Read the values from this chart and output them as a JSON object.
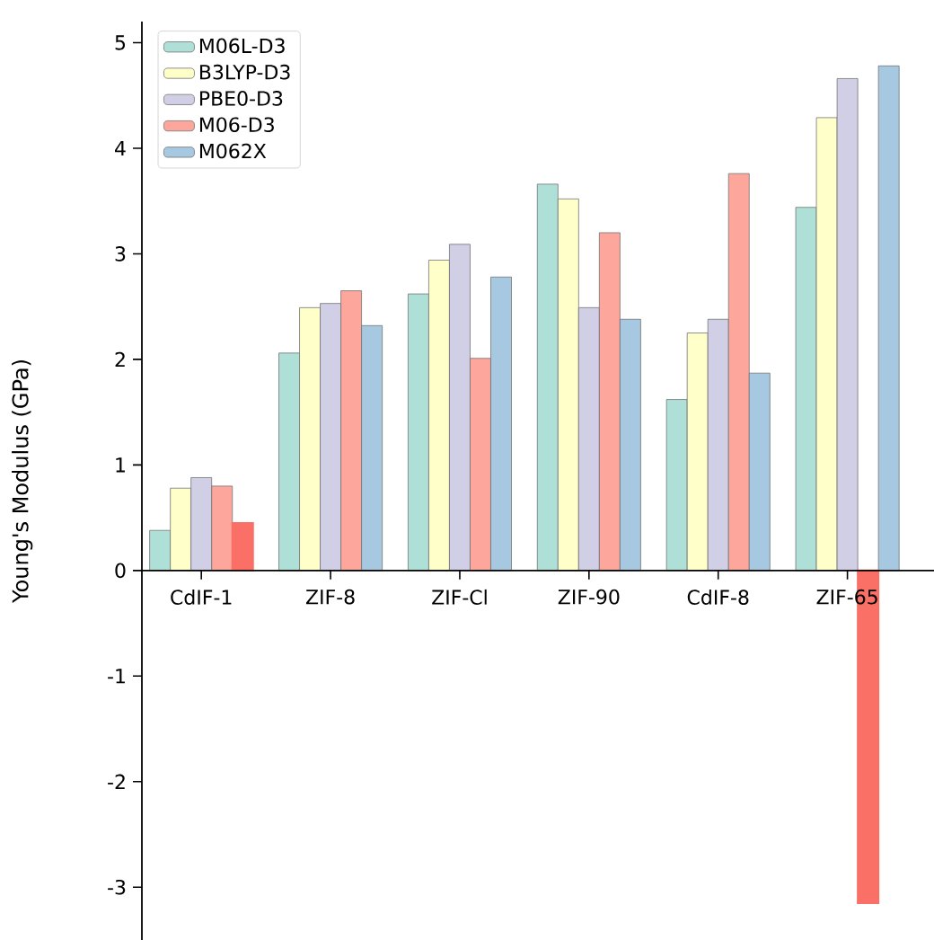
{
  "chart_data": {
    "type": "bar",
    "ylabel": "Young's Modulus (GPa)",
    "categories": [
      "CdIF-1",
      "ZIF-8",
      "ZIF-Cl",
      "ZIF-90",
      "CdIF-8",
      "ZIF-65"
    ],
    "series": [
      {
        "name": "M06L-D3",
        "color": "#aee0d8",
        "values": [
          0.38,
          2.06,
          2.62,
          3.66,
          1.62,
          3.44
        ]
      },
      {
        "name": "B3LYP-D3",
        "color": "#ffffca",
        "values": [
          0.78,
          2.49,
          2.94,
          3.52,
          2.25,
          4.29
        ]
      },
      {
        "name": "PBE0-D3",
        "color": "#d1cfe6",
        "values": [
          0.88,
          2.53,
          3.09,
          2.49,
          2.38,
          4.66
        ]
      },
      {
        "name": "M06-D3",
        "color": "#fca69c",
        "values": [
          0.8,
          2.65,
          2.01,
          3.2,
          3.76,
          -3.15
        ],
        "colors": [
          "#fca69c",
          "#fca69c",
          "#fca69c",
          "#fca69c",
          "#fca69c",
          "#fa6f66"
        ]
      },
      {
        "name": "M062X",
        "color": "#a6c8e0",
        "values": [
          0.45,
          2.32,
          2.78,
          2.38,
          1.87,
          4.78
        ],
        "colors": [
          "#fa6f66",
          "#a6c8e0",
          "#a6c8e0",
          "#a6c8e0",
          "#a6c8e0",
          "#a6c8e0"
        ]
      }
    ],
    "ylim": [
      -3.5,
      5.2
    ],
    "yticks": [
      -3,
      -2,
      -1,
      0,
      1,
      2,
      3,
      4,
      5
    ],
    "grid": false,
    "legend": "top left"
  }
}
